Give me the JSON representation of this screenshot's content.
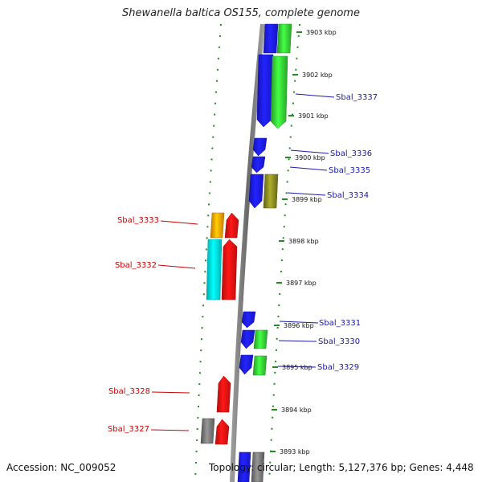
{
  "title": "Shewanella baltica OS155, complete genome",
  "footer": {
    "accession": "Accession: NC_009052",
    "summary": "Topology: circular; Length: 5,127,376 bp; Genes: 4,448"
  },
  "colors": {
    "blue": "#1a1aee",
    "green": "#33cc33",
    "olive": "#808020",
    "orange": "#ff9900",
    "cyan": "#00e0e0",
    "red": "#ee1111",
    "gray": "#707070",
    "tick_green": "#228b22",
    "label_red": "#cc0000",
    "label_blue": "#1a1aa6"
  },
  "scale_ticks": [
    {
      "pos": 3903,
      "label": "3903 kbp"
    },
    {
      "pos": 3902,
      "label": "3902 kbp"
    },
    {
      "pos": 3901,
      "label": "3901 kbp"
    },
    {
      "pos": 3900,
      "label": "3900 kbp"
    },
    {
      "pos": 3899,
      "label": "3899 kbp"
    },
    {
      "pos": 3898,
      "label": "3898 kbp"
    },
    {
      "pos": 3897,
      "label": "3897 kbp"
    },
    {
      "pos": 3896,
      "label": "3896 kbp"
    },
    {
      "pos": 3895,
      "label": "3895 kbp"
    },
    {
      "pos": 3894,
      "label": "3894 kbp"
    },
    {
      "pos": 3893,
      "label": "3893 kbp"
    }
  ],
  "labels": [
    {
      "text": "Sbal_3337",
      "color": "blue"
    },
    {
      "text": "Sbal_3336",
      "color": "blue"
    },
    {
      "text": "Sbal_3335",
      "color": "blue"
    },
    {
      "text": "Sbal_3334",
      "color": "blue"
    },
    {
      "text": "Sbal_3333",
      "color": "red"
    },
    {
      "text": "Sbal_3332",
      "color": "red"
    },
    {
      "text": "Sbal_3331",
      "color": "blue"
    },
    {
      "text": "Sbal_3330",
      "color": "blue"
    },
    {
      "text": "Sbal_3329",
      "color": "blue"
    },
    {
      "text": "Sbal_3328",
      "color": "red"
    },
    {
      "text": "Sbal_3327",
      "color": "red"
    }
  ],
  "features": [
    {
      "name": "feature-top-blue",
      "color": "blue",
      "dir": "none"
    },
    {
      "name": "feature-top-green",
      "color": "green",
      "dir": "none"
    },
    {
      "name": "feature-sbal-3337-blue",
      "color": "blue",
      "dir": "down"
    },
    {
      "name": "feature-sbal-3337-green",
      "color": "green",
      "dir": "down"
    },
    {
      "name": "feature-sbal-3336",
      "color": "blue",
      "dir": "down"
    },
    {
      "name": "feature-sbal-3335",
      "color": "blue",
      "dir": "down"
    },
    {
      "name": "feature-sbal-3334-blue",
      "color": "blue",
      "dir": "down"
    },
    {
      "name": "feature-sbal-3334-olive",
      "color": "olive",
      "dir": "none"
    },
    {
      "name": "feature-sbal-3333-orange",
      "color": "orange",
      "dir": "none"
    },
    {
      "name": "feature-sbal-3333-red",
      "color": "red",
      "dir": "up"
    },
    {
      "name": "feature-sbal-3332-cyan",
      "color": "cyan",
      "dir": "none"
    },
    {
      "name": "feature-sbal-3332-red",
      "color": "red",
      "dir": "up"
    },
    {
      "name": "feature-sbal-3331",
      "color": "blue",
      "dir": "down"
    },
    {
      "name": "feature-sbal-3330-blue",
      "color": "blue",
      "dir": "down"
    },
    {
      "name": "feature-sbal-3330-green",
      "color": "green",
      "dir": "none"
    },
    {
      "name": "feature-sbal-3329-blue",
      "color": "blue",
      "dir": "down"
    },
    {
      "name": "feature-sbal-3329-green",
      "color": "green",
      "dir": "none"
    },
    {
      "name": "feature-sbal-3328",
      "color": "red",
      "dir": "up"
    },
    {
      "name": "feature-sbal-3327-gray",
      "color": "gray",
      "dir": "none"
    },
    {
      "name": "feature-sbal-3327-red",
      "color": "red",
      "dir": "up"
    },
    {
      "name": "feature-bottom-blue",
      "color": "blue",
      "dir": "none"
    },
    {
      "name": "feature-bottom-gray",
      "color": "gray",
      "dir": "none"
    }
  ]
}
